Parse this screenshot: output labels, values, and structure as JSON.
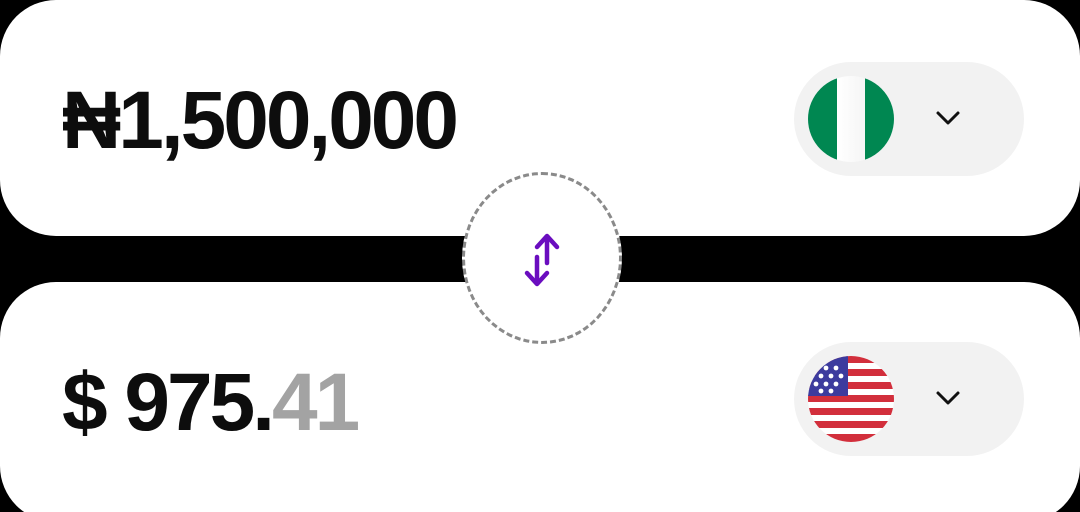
{
  "converter": {
    "from": {
      "symbol": "₦",
      "amount": "1,500,000",
      "flag_icon": "nigeria-flag-icon",
      "flag_colors": {
        "green": "#008751",
        "white": "#ffffff"
      }
    },
    "to": {
      "symbol": "$",
      "amount_whole": "975.",
      "amount_fraction": "41",
      "flag_icon": "usa-flag-icon",
      "flag_colors": {
        "red": "#d22f3c",
        "white": "#ffffff",
        "blue": "#3c3b9e"
      }
    },
    "swap_icon": "swap-arrows-icon",
    "dropdown_icon": "chevron-down-icon"
  },
  "colors": {
    "background": "#000000",
    "card": "#ffffff",
    "picker": "#f2f2f2",
    "text": "#0d0d0d",
    "muted_text": "#a3a3a3",
    "accent": "#6a0dbf"
  }
}
